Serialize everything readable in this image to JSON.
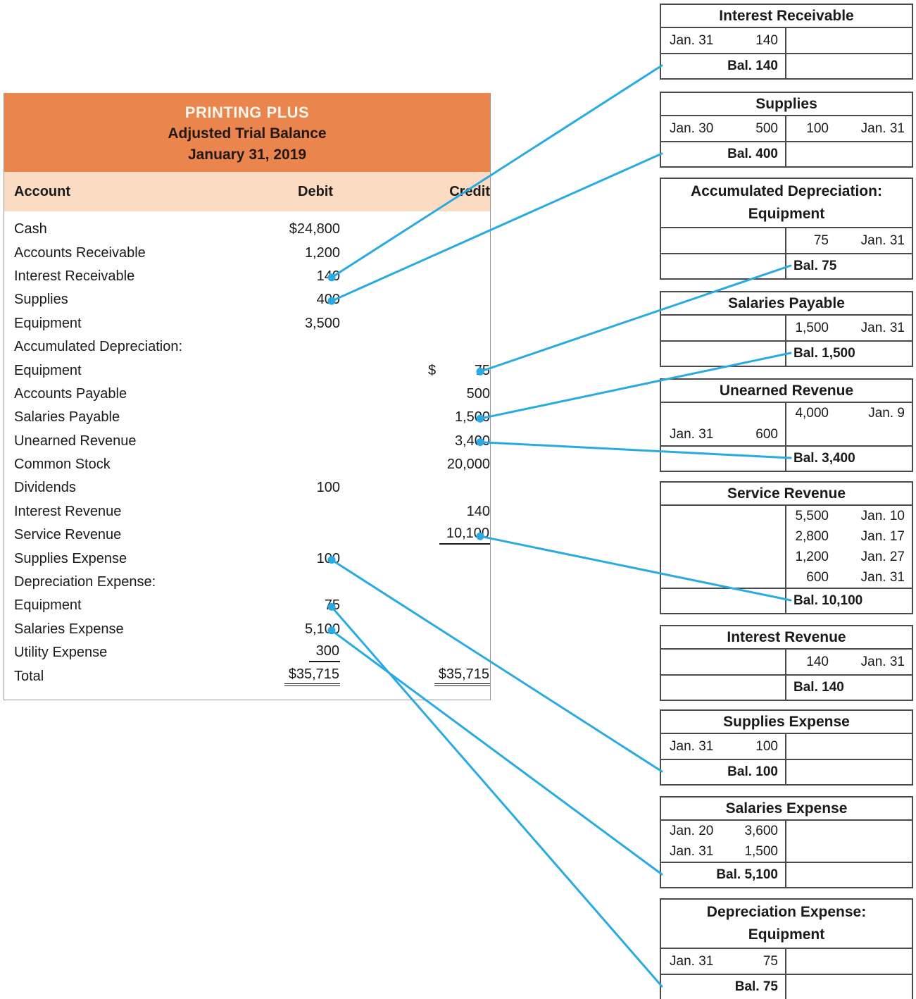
{
  "trial_balance": {
    "company": "PRINTING PLUS",
    "report_title": "Adjusted Trial Balance",
    "report_date": "January 31, 2019",
    "columns": {
      "account": "Account",
      "debit": "Debit",
      "credit": "Credit"
    },
    "rows": [
      {
        "account": "Cash",
        "debit": "$24,800",
        "credit": ""
      },
      {
        "account": "Accounts Receivable",
        "debit": "1,200",
        "credit": ""
      },
      {
        "account": "Interest Receivable",
        "debit": "140",
        "credit": ""
      },
      {
        "account": "Supplies",
        "debit": "400",
        "credit": ""
      },
      {
        "account": "Equipment",
        "debit": "3,500",
        "credit": ""
      },
      {
        "account": "Accumulated Depreciation:",
        "debit": "",
        "credit": ""
      },
      {
        "account": "Equipment",
        "debit": "",
        "credit": "75",
        "credit_prefix": "$"
      },
      {
        "account": "Accounts Payable",
        "debit": "",
        "credit": "500"
      },
      {
        "account": "Salaries Payable",
        "debit": "",
        "credit": "1,500"
      },
      {
        "account": "Unearned Revenue",
        "debit": "",
        "credit": "3,400"
      },
      {
        "account": "Common Stock",
        "debit": "",
        "credit": "20,000"
      },
      {
        "account": "Dividends",
        "debit": "100",
        "credit": ""
      },
      {
        "account": "Interest Revenue",
        "debit": "",
        "credit": "140"
      },
      {
        "account": "Service Revenue",
        "debit": "",
        "credit": "10,100",
        "credit_style": "underline"
      },
      {
        "account": "Supplies Expense",
        "debit": "100",
        "credit": ""
      },
      {
        "account": "Depreciation Expense:",
        "debit": "",
        "credit": ""
      },
      {
        "account": "Equipment",
        "debit": "75",
        "credit": ""
      },
      {
        "account": "Salaries Expense",
        "debit": "5,100",
        "credit": ""
      },
      {
        "account": "Utility Expense",
        "debit": "300",
        "credit": "",
        "debit_style": "underline"
      },
      {
        "account": "Total",
        "debit": "$35,715",
        "credit": "$35,715",
        "debit_style": "double",
        "credit_style": "double"
      }
    ]
  },
  "t_accounts": [
    {
      "title_lines": [
        "Interest Receivable"
      ],
      "rows": [
        {
          "left_date": "Jan. 31",
          "left_amount": "140",
          "right_amount": "",
          "right_date": ""
        }
      ],
      "balance": "Bal. 140",
      "balance_side": "left"
    },
    {
      "title_lines": [
        "Supplies"
      ],
      "rows": [
        {
          "left_date": "Jan. 30",
          "left_amount": "500",
          "right_amount": "100",
          "right_date": "Jan. 31"
        }
      ],
      "balance": "Bal. 400",
      "balance_side": "left"
    },
    {
      "title_lines": [
        "Accumulated Depreciation:",
        "Equipment"
      ],
      "rows": [
        {
          "left_date": "",
          "left_amount": "",
          "right_amount": "75",
          "right_date": "Jan. 31"
        }
      ],
      "balance": "Bal. 75",
      "balance_side": "right"
    },
    {
      "title_lines": [
        "Salaries Payable"
      ],
      "rows": [
        {
          "left_date": "",
          "left_amount": "",
          "right_amount": "1,500",
          "right_date": "Jan. 31"
        }
      ],
      "balance": "Bal. 1,500",
      "balance_side": "right"
    },
    {
      "title_lines": [
        "Unearned Revenue"
      ],
      "rows": [
        {
          "left_date": "",
          "left_amount": "",
          "right_amount": "4,000",
          "right_date": "Jan. 9"
        },
        {
          "left_date": "Jan. 31",
          "left_amount": "600",
          "right_amount": "",
          "right_date": ""
        }
      ],
      "balance": "Bal. 3,400",
      "balance_side": "right"
    },
    {
      "title_lines": [
        "Service Revenue"
      ],
      "rows": [
        {
          "left_date": "",
          "left_amount": "",
          "right_amount": "5,500",
          "right_date": "Jan. 10"
        },
        {
          "left_date": "",
          "left_amount": "",
          "right_amount": "2,800",
          "right_date": "Jan. 17"
        },
        {
          "left_date": "",
          "left_amount": "",
          "right_amount": "1,200",
          "right_date": "Jan. 27"
        },
        {
          "left_date": "",
          "left_amount": "",
          "right_amount": "600",
          "right_date": "Jan. 31"
        }
      ],
      "balance": "Bal. 10,100",
      "balance_side": "right"
    },
    {
      "title_lines": [
        "Interest Revenue"
      ],
      "rows": [
        {
          "left_date": "",
          "left_amount": "",
          "right_amount": "140",
          "right_date": "Jan. 31"
        }
      ],
      "balance": "Bal. 140",
      "balance_side": "right"
    },
    {
      "title_lines": [
        "Supplies Expense"
      ],
      "rows": [
        {
          "left_date": "Jan. 31",
          "left_amount": "100",
          "right_amount": "",
          "right_date": ""
        }
      ],
      "balance": "Bal. 100",
      "balance_side": "left"
    },
    {
      "title_lines": [
        "Salaries Expense"
      ],
      "rows": [
        {
          "left_date": "Jan. 20",
          "left_amount": "3,600",
          "right_amount": "",
          "right_date": ""
        },
        {
          "left_date": "Jan. 31",
          "left_amount": "1,500",
          "right_amount": "",
          "right_date": ""
        }
      ],
      "balance": "Bal. 5,100",
      "balance_side": "left"
    },
    {
      "title_lines": [
        "Depreciation Expense:",
        "Equipment"
      ],
      "rows": [
        {
          "left_date": "Jan. 31",
          "left_amount": "75",
          "right_amount": "",
          "right_date": ""
        }
      ],
      "balance": "Bal. 75",
      "balance_side": "left"
    }
  ],
  "connectors": [
    {
      "from_row": 2,
      "column": "debit",
      "to_account": 0
    },
    {
      "from_row": 3,
      "column": "debit",
      "to_account": 1
    },
    {
      "from_row": 6,
      "column": "credit",
      "to_account": 2
    },
    {
      "from_row": 8,
      "column": "credit",
      "to_account": 3
    },
    {
      "from_row": 9,
      "column": "credit",
      "to_account": 4
    },
    {
      "from_row": 13,
      "column": "credit",
      "to_account": 5
    },
    {
      "from_row": 14,
      "column": "debit",
      "to_account": 7
    },
    {
      "from_row": 16,
      "column": "debit",
      "to_account": 9
    },
    {
      "from_row": 17,
      "column": "debit",
      "to_account": 8
    }
  ],
  "colors": {
    "header_orange": "#E9854D",
    "header_peach": "#FBDCC2",
    "connector_blue": "#29ABE2"
  }
}
